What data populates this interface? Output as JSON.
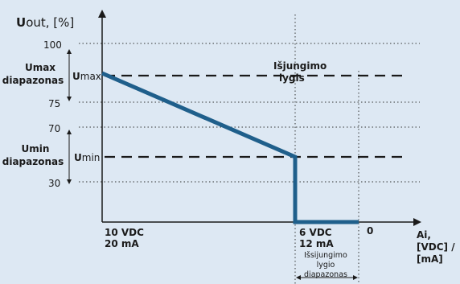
{
  "axes": {
    "y_title_bold": "U",
    "y_title_rest": "out, [%]",
    "x_title_line1": "Ai,",
    "x_title_line2": "[VDC] /",
    "x_title_line3": "[mA]"
  },
  "y_ticks": [
    "100",
    "75",
    "70",
    "30"
  ],
  "ranges": {
    "umax_line1": "Umax",
    "umax_line2": "diapazonas",
    "umin_line1": "Umin",
    "umin_line2": "diapazonas"
  },
  "levels": {
    "umax_bold": "U",
    "umax_rest": "max",
    "umin_bold": "U",
    "umin_rest": "min"
  },
  "x_marks": {
    "left_line1": "10 VDC",
    "left_line2": "20 mA",
    "mid_line1": "6 VDC",
    "mid_line2": "12 mA",
    "zero": "0"
  },
  "cutoff": {
    "label_line1": "Išjungimo",
    "label_line2": "lygis",
    "range_line1": "Išsijungimo",
    "range_line2": "lygio",
    "range_line3": "diapazonas"
  },
  "colors": {
    "background": "#dde8f3",
    "curve": "#1f5f8b",
    "axis": "#1a1a1a"
  }
}
